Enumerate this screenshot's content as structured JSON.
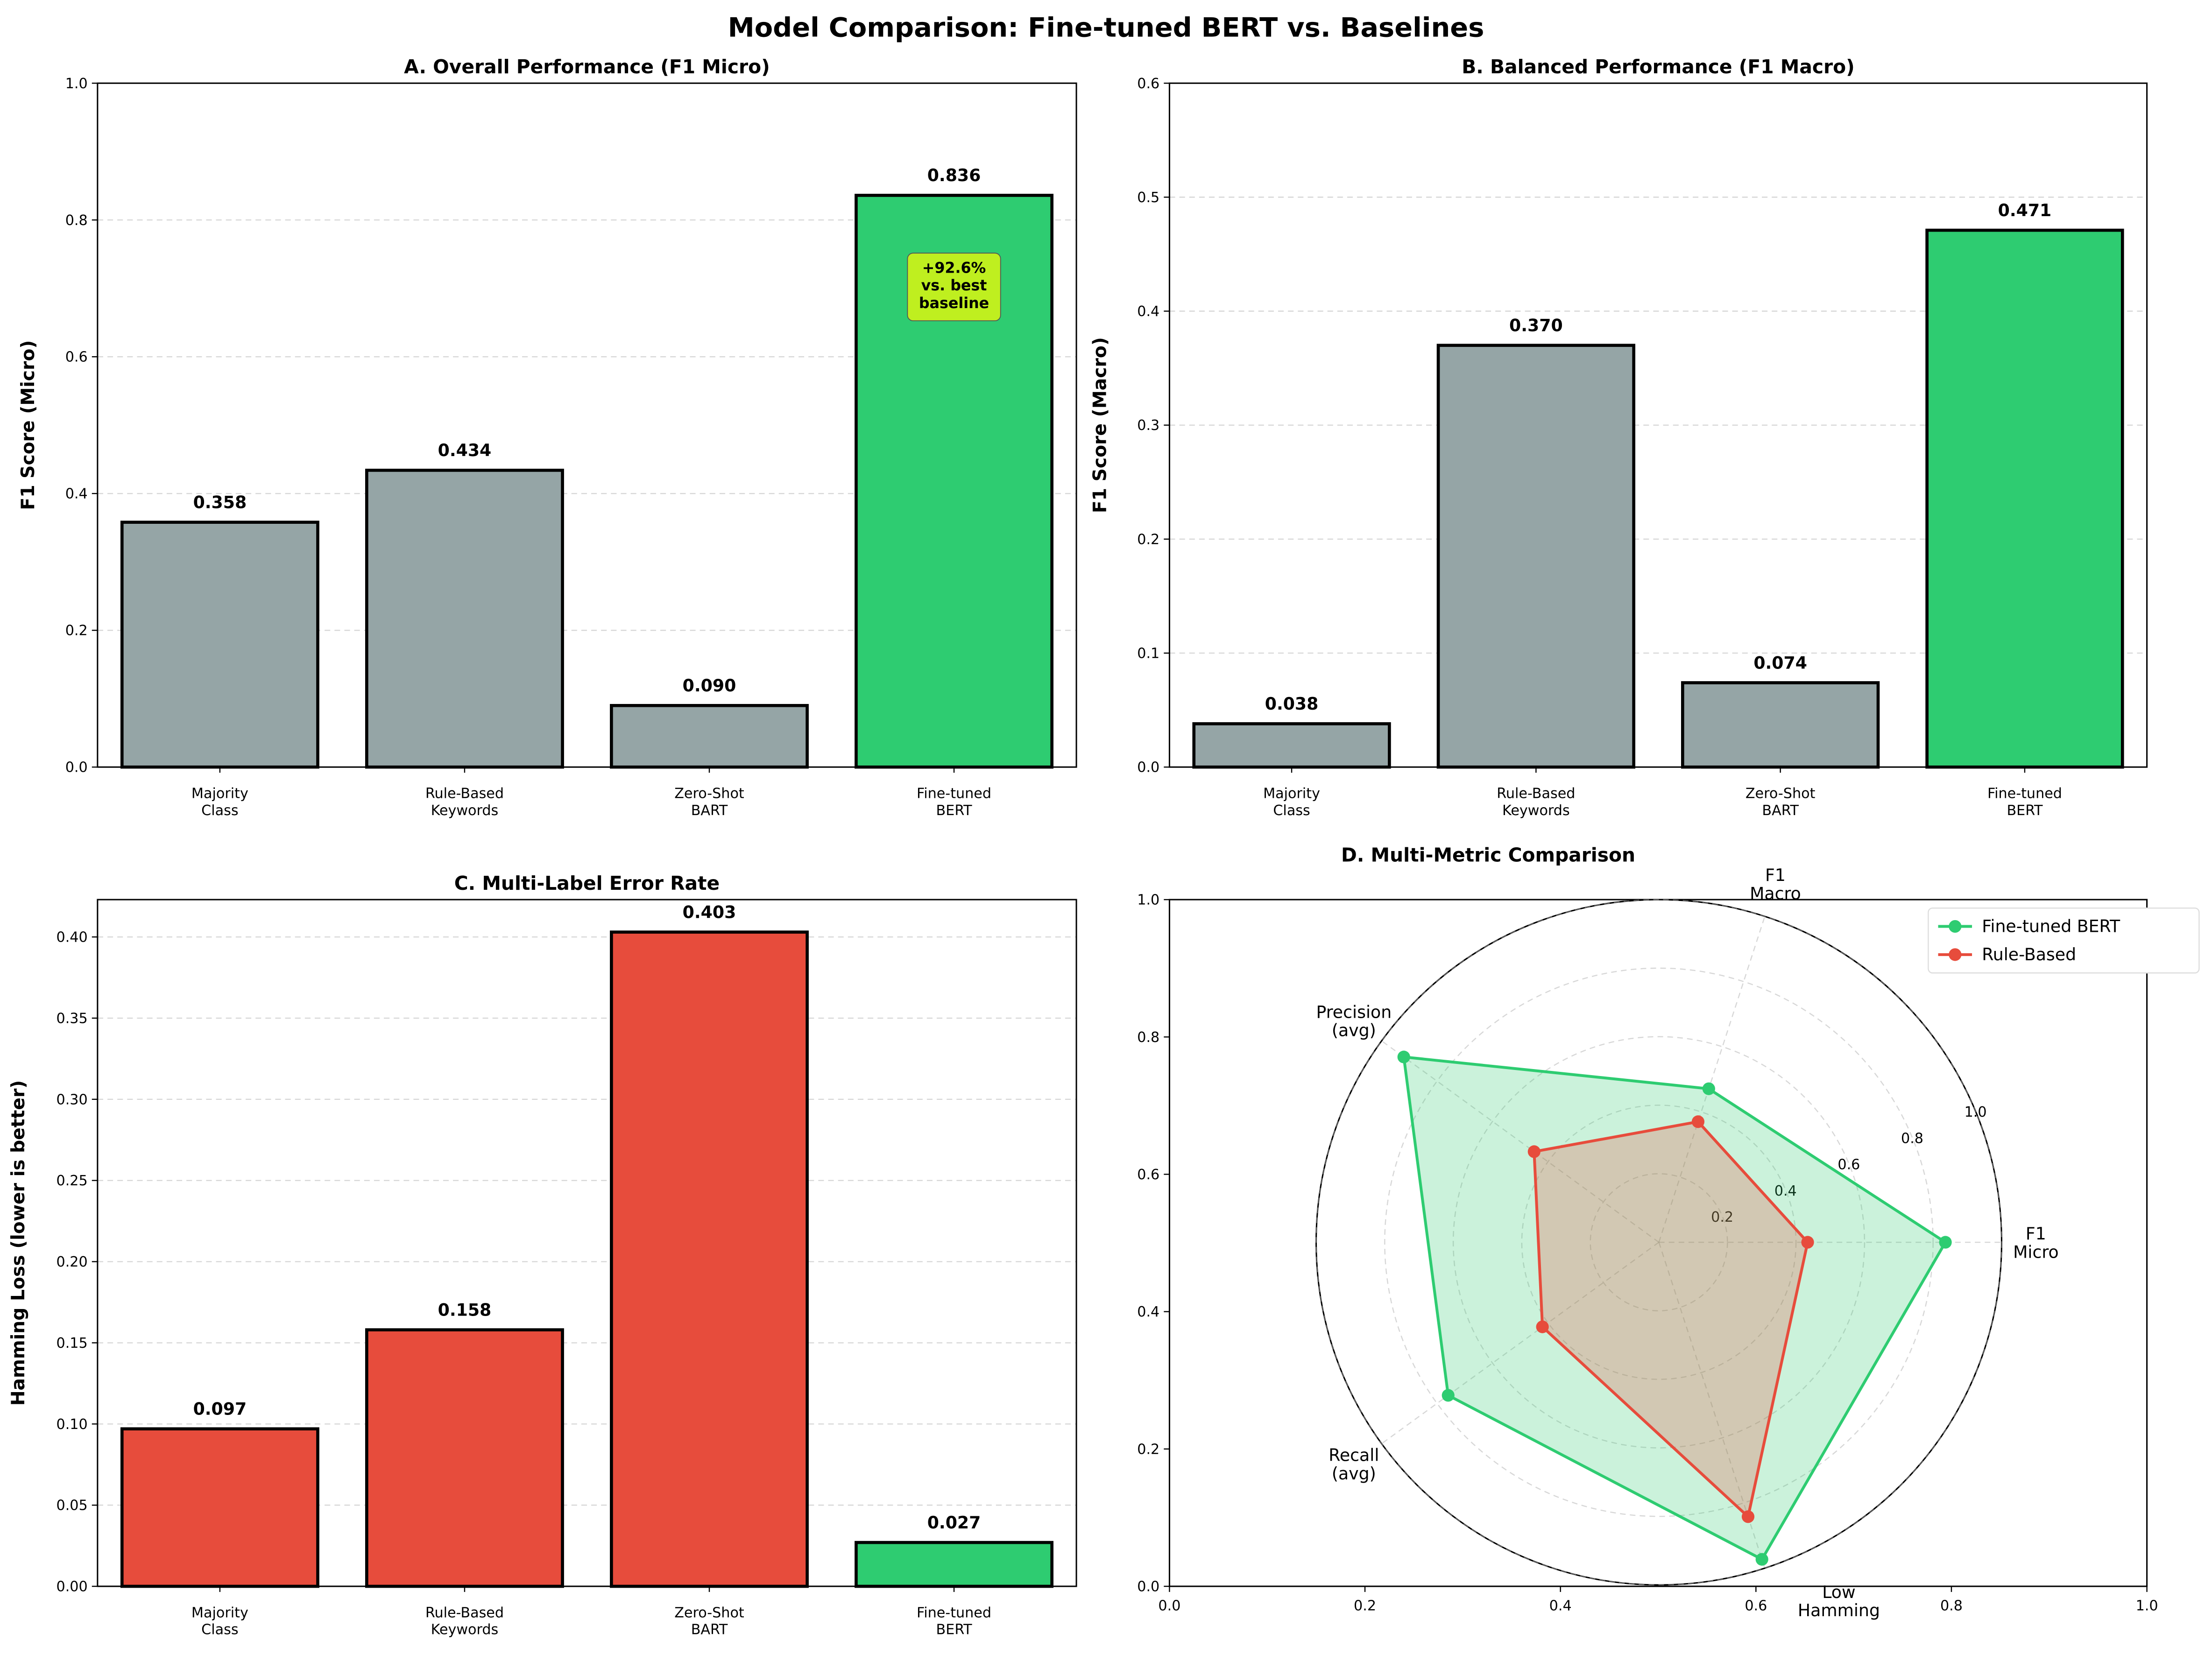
{
  "title": "Model Comparison: Fine-tuned BERT vs. Baselines",
  "colors": {
    "baseline": "#95a5a6",
    "best": "#2ecc71",
    "error": "#e74c3c",
    "rule": "#e74c3c",
    "annotation": "#bfef1f"
  },
  "chart_data": [
    {
      "type": "bar",
      "title": "A. Overall Performance (F1 Micro)",
      "ylabel": "F1 Score (Micro)",
      "categories": [
        "Majority\nClass",
        "Rule-Based\nKeywords",
        "Zero-Shot\nBART",
        "Fine-tuned\nBERT"
      ],
      "values": [
        0.358,
        0.434,
        0.09,
        0.836
      ],
      "value_labels": [
        "0.358",
        "0.434",
        "0.090",
        "0.836"
      ],
      "bar_colors": [
        "#95a5a6",
        "#95a5a6",
        "#95a5a6",
        "#2ecc71"
      ],
      "ylim": [
        0,
        1.0
      ],
      "yticks": [
        "0.0",
        "0.2",
        "0.4",
        "0.6",
        "0.8",
        "1.0"
      ],
      "ytick_values": [
        0,
        0.2,
        0.4,
        0.6,
        0.8,
        1.0
      ],
      "grid": "y dashed",
      "annotation": {
        "text": "+92.6%\nvs. best\nbaseline",
        "category": 3,
        "y": 0.7
      }
    },
    {
      "type": "bar",
      "title": "B. Balanced Performance (F1 Macro)",
      "ylabel": "F1 Score (Macro)",
      "categories": [
        "Majority\nClass",
        "Rule-Based\nKeywords",
        "Zero-Shot\nBART",
        "Fine-tuned\nBERT"
      ],
      "values": [
        0.038,
        0.37,
        0.074,
        0.471
      ],
      "value_labels": [
        "0.038",
        "0.370",
        "0.074",
        "0.471"
      ],
      "bar_colors": [
        "#95a5a6",
        "#95a5a6",
        "#95a5a6",
        "#2ecc71"
      ],
      "ylim": [
        0,
        0.6
      ],
      "yticks": [
        "0.0",
        "0.1",
        "0.2",
        "0.3",
        "0.4",
        "0.5",
        "0.6"
      ],
      "ytick_values": [
        0,
        0.1,
        0.2,
        0.3,
        0.4,
        0.5,
        0.6
      ],
      "grid": "y dashed"
    },
    {
      "type": "bar",
      "title": "C. Multi-Label Error Rate",
      "ylabel": "Hamming Loss (lower is better)",
      "categories": [
        "Majority\nClass",
        "Rule-Based\nKeywords",
        "Zero-Shot\nBART",
        "Fine-tuned\nBERT"
      ],
      "values": [
        0.097,
        0.158,
        0.403,
        0.027
      ],
      "value_labels": [
        "0.097",
        "0.158",
        "0.403",
        "0.027"
      ],
      "bar_colors": [
        "#e74c3c",
        "#e74c3c",
        "#e74c3c",
        "#2ecc71"
      ],
      "ylim": [
        0,
        0.423
      ],
      "yticks": [
        "0.00",
        "0.05",
        "0.10",
        "0.15",
        "0.20",
        "0.25",
        "0.30",
        "0.35",
        "0.40"
      ],
      "ytick_values": [
        0,
        0.05,
        0.1,
        0.15,
        0.2,
        0.25,
        0.3,
        0.35,
        0.4
      ],
      "grid": "y dashed"
    },
    {
      "type": "radar",
      "title": "D. Multi-Metric Comparison",
      "axes": [
        "F1\nMicro",
        "F1\nMacro",
        "Precision\n(avg)",
        "Recall\n(avg)",
        "Low\nHamming"
      ],
      "rlim": [
        0,
        1.0
      ],
      "rticks": [
        "0.2",
        "0.4",
        "0.6",
        "0.8",
        "1.0"
      ],
      "rtick_values": [
        0.2,
        0.4,
        0.6,
        0.8,
        1.0
      ],
      "background_axis_ticks": [
        "0.0",
        "0.2",
        "0.4",
        "0.6",
        "0.8",
        "1.0"
      ],
      "series": [
        {
          "name": "Fine-tuned BERT",
          "color": "#2ecc71",
          "values": [
            0.836,
            0.471,
            0.92,
            0.76,
            0.973
          ]
        },
        {
          "name": "Rule-Based",
          "color": "#e74c3c",
          "values": [
            0.434,
            0.37,
            0.45,
            0.42,
            0.842
          ]
        }
      ],
      "legend": "top-right"
    }
  ]
}
